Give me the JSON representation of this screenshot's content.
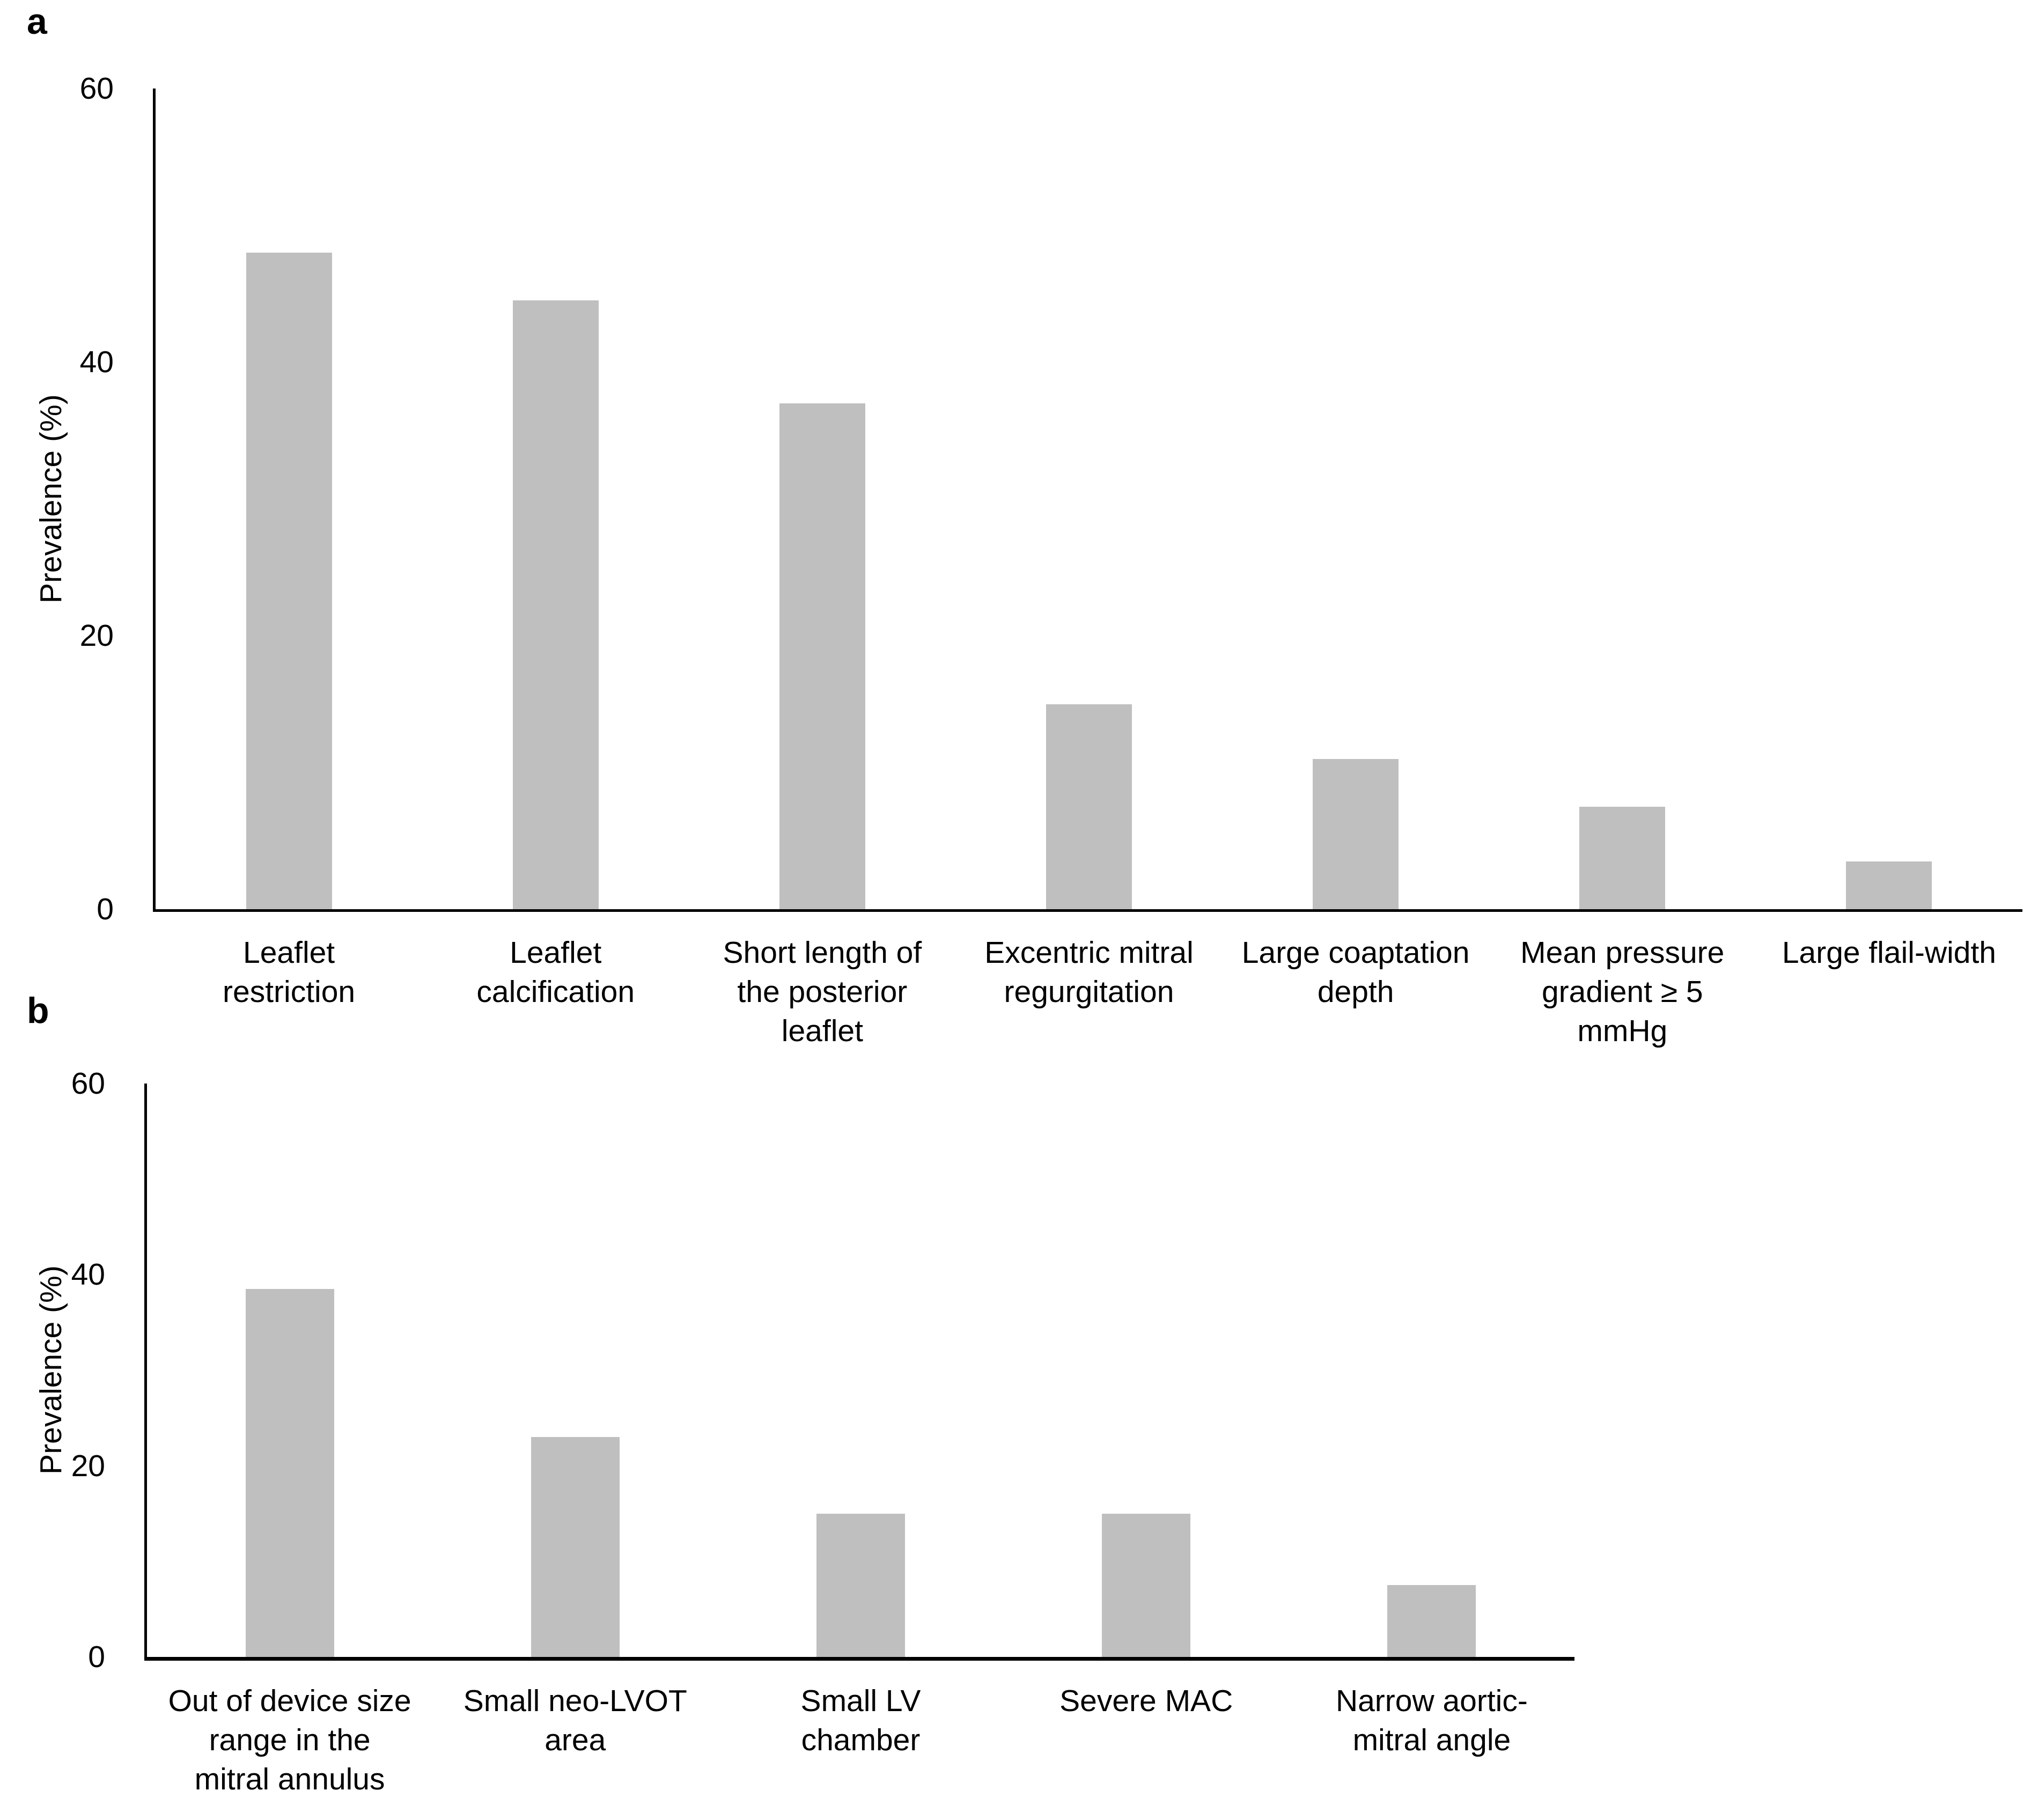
{
  "figure": {
    "background": "#ffffff",
    "axis_color": "#000000",
    "text_color": "#000000"
  },
  "chart_data": [
    {
      "type": "bar",
      "panel_letter": "a",
      "title": "",
      "xlabel": "",
      "ylabel": "Prevalence (%)",
      "ylim": [
        0,
        60
      ],
      "yticks": [
        60,
        40,
        20,
        0
      ],
      "grid": false,
      "legend": false,
      "bar_color": "#bfbfbf",
      "categories": [
        "Leaflet restriction",
        "Leaflet calcification",
        "Short length of the posterior leaflet",
        "Excentric mitral regurgitation",
        "Large coaptation depth",
        "Mean pressure gradient ≥ 5 mmHg",
        "Large flail-width"
      ],
      "category_lines": [
        [
          "Leaflet",
          "restriction"
        ],
        [
          "Leaflet",
          "calcification"
        ],
        [
          "Short length of",
          "the posterior",
          "leaflet"
        ],
        [
          "Excentric mitral",
          "regurgitation"
        ],
        [
          "Large coaptation",
          "depth"
        ],
        [
          "Mean pressure",
          "gradient ≥ 5",
          "mmHg"
        ],
        [
          "Large flail-width"
        ]
      ],
      "values": [
        48,
        44.5,
        37,
        15,
        11,
        7.5,
        3.5
      ]
    },
    {
      "type": "bar",
      "panel_letter": "b",
      "title": "",
      "xlabel": "",
      "ylabel": "Prevalence (%)",
      "ylim": [
        0,
        60
      ],
      "yticks": [
        60,
        40,
        20,
        0
      ],
      "grid": false,
      "legend": false,
      "bar_color": "#bfbfbf",
      "categories": [
        "Out of device size range in the mitral annulus",
        "Small neo-LVOT area",
        "Small LV chamber",
        "Severe MAC",
        "Narrow aortic-mitral angle"
      ],
      "category_lines": [
        [
          "Out of device size",
          "range in the",
          "mitral annulus"
        ],
        [
          "Small neo-LVOT",
          "area"
        ],
        [
          "Small LV",
          "chamber"
        ],
        [
          "Severe MAC"
        ],
        [
          "Narrow aortic-",
          "mitral angle"
        ]
      ],
      "values": [
        38.5,
        23,
        15,
        15,
        7.5
      ]
    }
  ]
}
